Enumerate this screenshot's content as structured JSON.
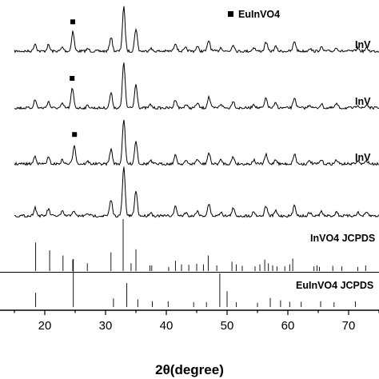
{
  "chart_data": {
    "type": "line",
    "title": "",
    "xlabel": "2θ(degree)",
    "ylabel": "",
    "xlim": [
      15,
      75
    ],
    "x_ticks": [
      "20",
      "30",
      "40",
      "50",
      "60",
      "70"
    ],
    "grid": false,
    "legend": {
      "marker": "square",
      "label": "EuInVO4",
      "position": "top-right"
    },
    "series": [
      {
        "name": "InV",
        "marker_peaks": [
          24.6
        ]
      },
      {
        "name": "InV",
        "marker_peaks": [
          24.5
        ]
      },
      {
        "name": "InV",
        "marker_peaks": [
          24.9
        ]
      },
      {
        "name": "",
        "marker_peaks": []
      }
    ],
    "peaks": [
      {
        "x": 18.4,
        "h": 10
      },
      {
        "x": 20.6,
        "h": 8
      },
      {
        "x": 22.9,
        "h": 5
      },
      {
        "x": 24.7,
        "h": 6
      },
      {
        "x": 27.1,
        "h": 3
      },
      {
        "x": 30.9,
        "h": 19
      },
      {
        "x": 33.0,
        "h": 58
      },
      {
        "x": 35.0,
        "h": 30
      },
      {
        "x": 37.4,
        "h": 4
      },
      {
        "x": 41.5,
        "h": 11
      },
      {
        "x": 43.2,
        "h": 4
      },
      {
        "x": 45.1,
        "h": 6
      },
      {
        "x": 47.0,
        "h": 14
      },
      {
        "x": 49.0,
        "h": 5
      },
      {
        "x": 51.0,
        "h": 9
      },
      {
        "x": 54.4,
        "h": 5
      },
      {
        "x": 56.4,
        "h": 12
      },
      {
        "x": 58.0,
        "h": 6
      },
      {
        "x": 61.1,
        "h": 13
      },
      {
        "x": 63.6,
        "h": 4
      },
      {
        "x": 65.5,
        "h": 5
      },
      {
        "x": 68.0,
        "h": 5
      },
      {
        "x": 71.5,
        "h": 4
      },
      {
        "x": 73.0,
        "h": 4
      }
    ],
    "reference_patterns": [
      {
        "name": "InVO4",
        "label": "InVO4  JCPDS",
        "lines": [
          {
            "x": 18.5,
            "h": 55
          },
          {
            "x": 20.8,
            "h": 40
          },
          {
            "x": 23.0,
            "h": 30
          },
          {
            "x": 24.6,
            "h": 22
          },
          {
            "x": 27.0,
            "h": 15
          },
          {
            "x": 30.9,
            "h": 36
          },
          {
            "x": 32.9,
            "h": 100
          },
          {
            "x": 34.2,
            "h": 15
          },
          {
            "x": 35.0,
            "h": 42
          },
          {
            "x": 37.3,
            "h": 11
          },
          {
            "x": 37.6,
            "h": 11
          },
          {
            "x": 40.4,
            "h": 8
          },
          {
            "x": 41.5,
            "h": 20
          },
          {
            "x": 42.5,
            "h": 13
          },
          {
            "x": 43.7,
            "h": 12
          },
          {
            "x": 45.0,
            "h": 14
          },
          {
            "x": 46.1,
            "h": 13
          },
          {
            "x": 46.9,
            "h": 30
          },
          {
            "x": 48.3,
            "h": 11
          },
          {
            "x": 50.8,
            "h": 18
          },
          {
            "x": 51.5,
            "h": 13
          },
          {
            "x": 52.5,
            "h": 10
          },
          {
            "x": 54.6,
            "h": 9
          },
          {
            "x": 55.4,
            "h": 13
          },
          {
            "x": 56.2,
            "h": 22
          },
          {
            "x": 56.8,
            "h": 15
          },
          {
            "x": 57.5,
            "h": 11
          },
          {
            "x": 58.2,
            "h": 9
          },
          {
            "x": 59.5,
            "h": 9
          },
          {
            "x": 60.3,
            "h": 13
          },
          {
            "x": 60.8,
            "h": 24
          },
          {
            "x": 64.3,
            "h": 9
          },
          {
            "x": 64.8,
            "h": 11
          },
          {
            "x": 65.2,
            "h": 8
          },
          {
            "x": 67.4,
            "h": 10
          },
          {
            "x": 68.9,
            "h": 9
          },
          {
            "x": 71.5,
            "h": 8
          },
          {
            "x": 72.8,
            "h": 11
          }
        ]
      },
      {
        "name": "EuInVO4",
        "label": "EuInVO4  JCPDS",
        "lines": [
          {
            "x": 18.5,
            "h": 30
          },
          {
            "x": 24.7,
            "h": 100
          },
          {
            "x": 31.3,
            "h": 18
          },
          {
            "x": 33.5,
            "h": 50
          },
          {
            "x": 35.3,
            "h": 16
          },
          {
            "x": 37.7,
            "h": 12
          },
          {
            "x": 40.3,
            "h": 12
          },
          {
            "x": 44.5,
            "h": 10
          },
          {
            "x": 46.6,
            "h": 10
          },
          {
            "x": 48.8,
            "h": 70
          },
          {
            "x": 50.0,
            "h": 33
          },
          {
            "x": 51.5,
            "h": 10
          },
          {
            "x": 55.0,
            "h": 9
          },
          {
            "x": 57.1,
            "h": 19
          },
          {
            "x": 58.8,
            "h": 14
          },
          {
            "x": 60.3,
            "h": 11
          },
          {
            "x": 62.2,
            "h": 11
          },
          {
            "x": 65.4,
            "h": 12
          },
          {
            "x": 67.6,
            "h": 10
          },
          {
            "x": 71.1,
            "h": 12
          }
        ]
      }
    ]
  }
}
